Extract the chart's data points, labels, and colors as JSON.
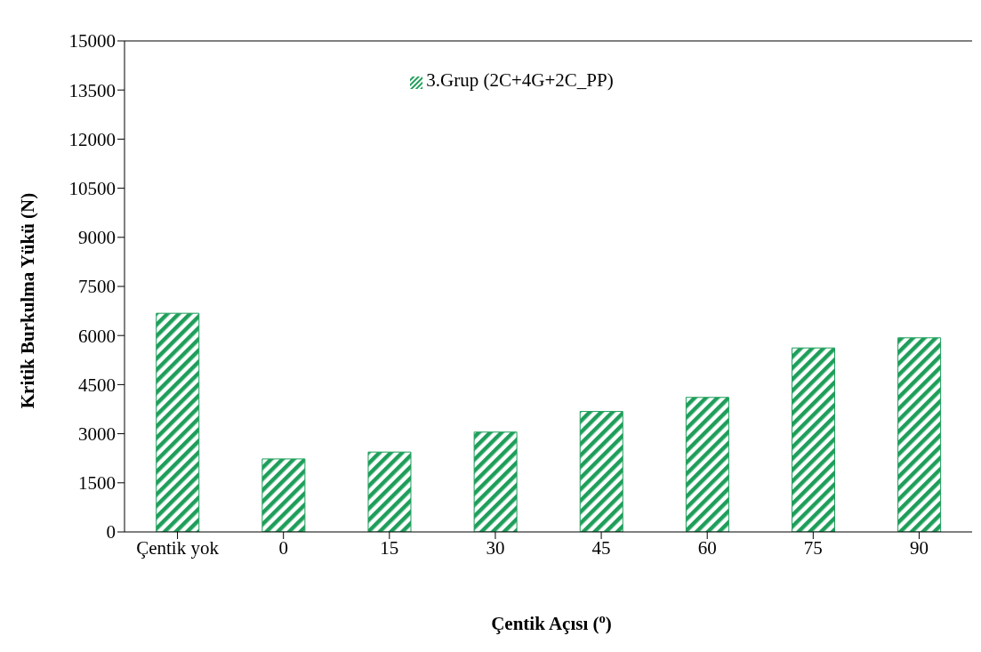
{
  "chart_data": {
    "type": "bar",
    "xlabel": "Çentik Açısı ($^{o}$)",
    "ylabel": "Kritik Burkulma Yükü (N)",
    "categories": [
      "Çentik yok",
      "0",
      "15",
      "30",
      "45",
      "60",
      "75",
      "90"
    ],
    "series": [
      {
        "name": "3.Grup (2C+4G+2C_PP)",
        "color": "#1e9e5a",
        "values": [
          6680,
          2230,
          2440,
          3050,
          3680,
          4110,
          5620,
          5930
        ]
      }
    ],
    "ylim": [
      0,
      15000
    ],
    "yticks": [
      0,
      1500,
      3000,
      4500,
      6000,
      7500,
      9000,
      10500,
      12000,
      13500,
      15000
    ],
    "grid": false,
    "legend": "top"
  }
}
